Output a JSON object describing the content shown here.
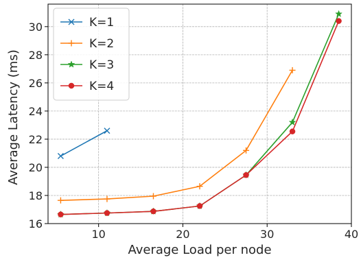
{
  "chart_data": {
    "type": "line",
    "title": "",
    "xlabel": "Average Load per node",
    "ylabel": "Average Latency (ms)",
    "xlim": [
      4.0,
      40.0
    ],
    "ylim": [
      16.0,
      31.6
    ],
    "x_ticks": [
      10,
      20,
      30,
      40
    ],
    "x_tick_labels": [
      "10",
      "20",
      "30",
      "40"
    ],
    "y_ticks": [
      16,
      18,
      20,
      22,
      24,
      26,
      28,
      30
    ],
    "y_tick_labels": [
      "16",
      "18",
      "20",
      "22",
      "24",
      "26",
      "28",
      "30"
    ],
    "grid": true,
    "grid_style": "dashed",
    "legend_position": "top-left",
    "series": [
      {
        "name": "K=1",
        "color": "#1f77b4",
        "marker": "x",
        "x": [
          5.5,
          11.0
        ],
        "y": [
          20.8,
          22.6
        ]
      },
      {
        "name": "K=2",
        "color": "#ff7f0e",
        "marker": "plus",
        "x": [
          5.5,
          11.0,
          16.5,
          22.0,
          27.5,
          33.0
        ],
        "y": [
          17.65,
          17.75,
          17.95,
          18.65,
          21.2,
          26.9
        ]
      },
      {
        "name": "K=3",
        "color": "#2ca02c",
        "marker": "star",
        "x": [
          5.5,
          11.0,
          16.5,
          22.0,
          27.5,
          33.0,
          38.5
        ],
        "y": [
          16.65,
          16.75,
          16.87,
          17.25,
          19.45,
          23.2,
          30.9
        ]
      },
      {
        "name": "K=4",
        "color": "#d62728",
        "marker": "circle",
        "x": [
          5.5,
          11.0,
          16.5,
          22.0,
          27.5,
          33.0,
          38.5
        ],
        "y": [
          16.65,
          16.75,
          16.87,
          17.25,
          19.45,
          22.55,
          30.4
        ]
      }
    ]
  }
}
